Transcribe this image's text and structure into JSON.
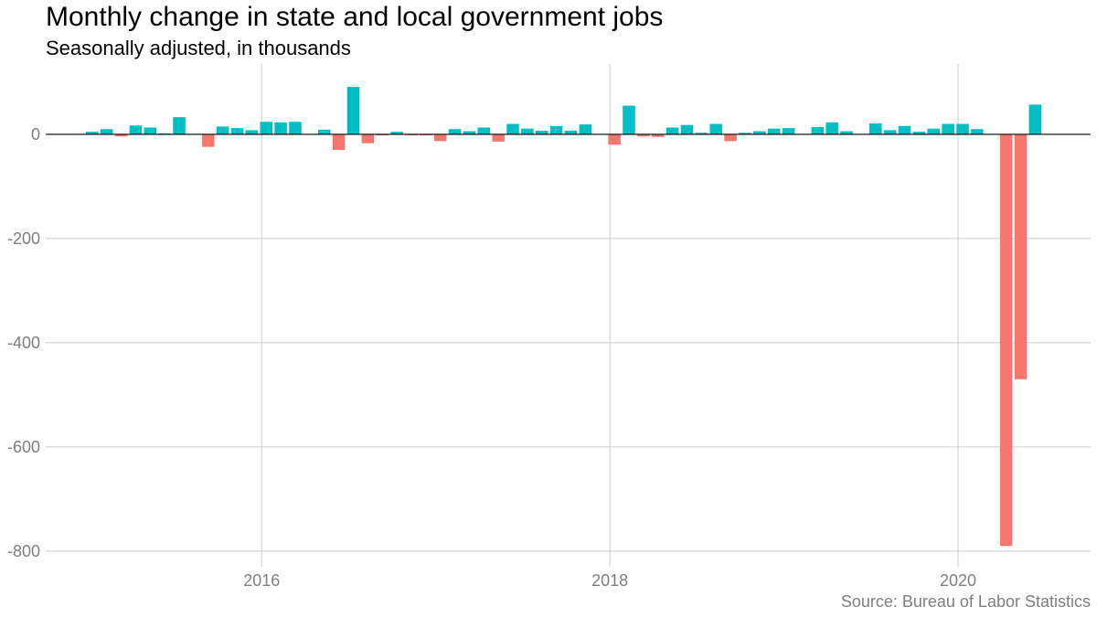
{
  "chart_data": {
    "type": "bar",
    "title": "Monthly change in state and local government jobs",
    "subtitle": "Seasonally adjusted, in thousands",
    "source": "Source: Bureau of Labor Statistics",
    "xlabel": "",
    "ylabel": "",
    "x_ticks": [
      "2016",
      "2018",
      "2020"
    ],
    "y_ticks": [
      0,
      -200,
      -400,
      -600,
      -800
    ],
    "ylim": [
      -830,
      135
    ],
    "grid": true,
    "legend": "none",
    "colors": {
      "positive": "#00BFC4",
      "negative": "#F8766D",
      "zero_line": "#000000",
      "grid": "#cccccc"
    },
    "x": [
      "2015-01",
      "2015-02",
      "2015-03",
      "2015-04",
      "2015-05",
      "2015-06",
      "2015-07",
      "2015-08",
      "2015-09",
      "2015-10",
      "2015-11",
      "2015-12",
      "2016-01",
      "2016-02",
      "2016-03",
      "2016-04",
      "2016-05",
      "2016-06",
      "2016-07",
      "2016-08",
      "2016-09",
      "2016-10",
      "2016-11",
      "2016-12",
      "2017-01",
      "2017-02",
      "2017-03",
      "2017-04",
      "2017-05",
      "2017-06",
      "2017-07",
      "2017-08",
      "2017-09",
      "2017-10",
      "2017-11",
      "2017-12",
      "2018-01",
      "2018-02",
      "2018-03",
      "2018-04",
      "2018-05",
      "2018-06",
      "2018-07",
      "2018-08",
      "2018-09",
      "2018-10",
      "2018-11",
      "2018-12",
      "2019-01",
      "2019-02",
      "2019-03",
      "2019-04",
      "2019-05",
      "2019-06",
      "2019-07",
      "2019-08",
      "2019-09",
      "2019-10",
      "2019-11",
      "2019-12",
      "2020-01",
      "2020-02",
      "2020-03",
      "2020-04",
      "2020-05",
      "2020-06"
    ],
    "values": [
      5,
      10,
      -4,
      17,
      13,
      2,
      33,
      1,
      -24,
      15,
      12,
      8,
      24,
      23,
      24,
      0,
      9,
      -30,
      91,
      -17,
      -2,
      5,
      -2,
      -2,
      -13,
      10,
      6,
      13,
      -14,
      20,
      11,
      7,
      16,
      7,
      19,
      0,
      -20,
      55,
      -4,
      -5,
      13,
      18,
      3,
      20,
      -13,
      3,
      6,
      11,
      12,
      0,
      14,
      23,
      6,
      0,
      21,
      8,
      16,
      5,
      11,
      20,
      20,
      10,
      0,
      -790,
      -470,
      57
    ]
  }
}
